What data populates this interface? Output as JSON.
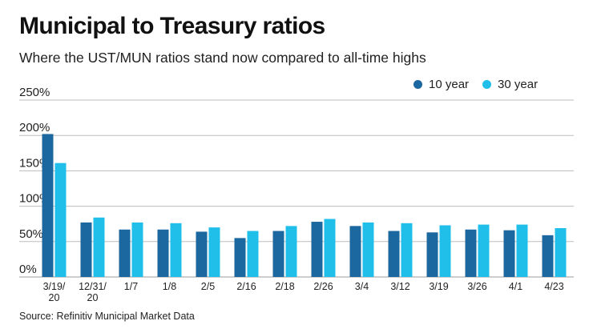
{
  "header": {
    "title": "Municipal to Treasury ratios",
    "subtitle": "Where the UST/MUN ratios stand now compared to all-time highs"
  },
  "source": "Source: Refinitiv Municipal Market Data",
  "colors": {
    "ten_year": "#1b679f",
    "thirty_year": "#1fbfea",
    "grid": "#bdbdbd"
  },
  "chart_data": {
    "type": "bar",
    "title": "Municipal to Treasury ratios",
    "subtitle": "Where the UST/MUN ratios stand now compared to all-time highs",
    "xlabel": "",
    "ylabel": "",
    "ylim": [
      0,
      250
    ],
    "yticks": [
      0,
      50,
      100,
      150,
      200,
      250
    ],
    "ytick_labels": [
      "0%",
      "50%",
      "100%",
      "150%",
      "200%",
      "250%"
    ],
    "grid": true,
    "legend_position": "top-right",
    "categories": [
      "3/19/20",
      "12/31/20",
      "1/7",
      "1/8",
      "2/5",
      "2/16",
      "2/18",
      "2/26",
      "3/4",
      "3/12",
      "3/19",
      "3/26",
      "4/1",
      "4/23"
    ],
    "category_labels": [
      [
        "3/19/",
        "20"
      ],
      [
        "12/31/",
        "20"
      ],
      [
        "1/7"
      ],
      [
        "1/8"
      ],
      [
        "2/5"
      ],
      [
        "2/16"
      ],
      [
        "2/18"
      ],
      [
        "2/26"
      ],
      [
        "3/4"
      ],
      [
        "3/12"
      ],
      [
        "3/19"
      ],
      [
        "3/26"
      ],
      [
        "4/1"
      ],
      [
        "4/23"
      ]
    ],
    "series": [
      {
        "name": "10 year",
        "color": "#1b679f",
        "values": [
          202,
          77,
          67,
          67,
          64,
          55,
          65,
          78,
          72,
          65,
          63,
          67,
          66,
          59
        ]
      },
      {
        "name": "30 year",
        "color": "#1fbfea",
        "values": [
          161,
          84,
          77,
          76,
          70,
          65,
          72,
          82,
          77,
          76,
          73,
          74,
          74,
          69
        ]
      }
    ]
  }
}
